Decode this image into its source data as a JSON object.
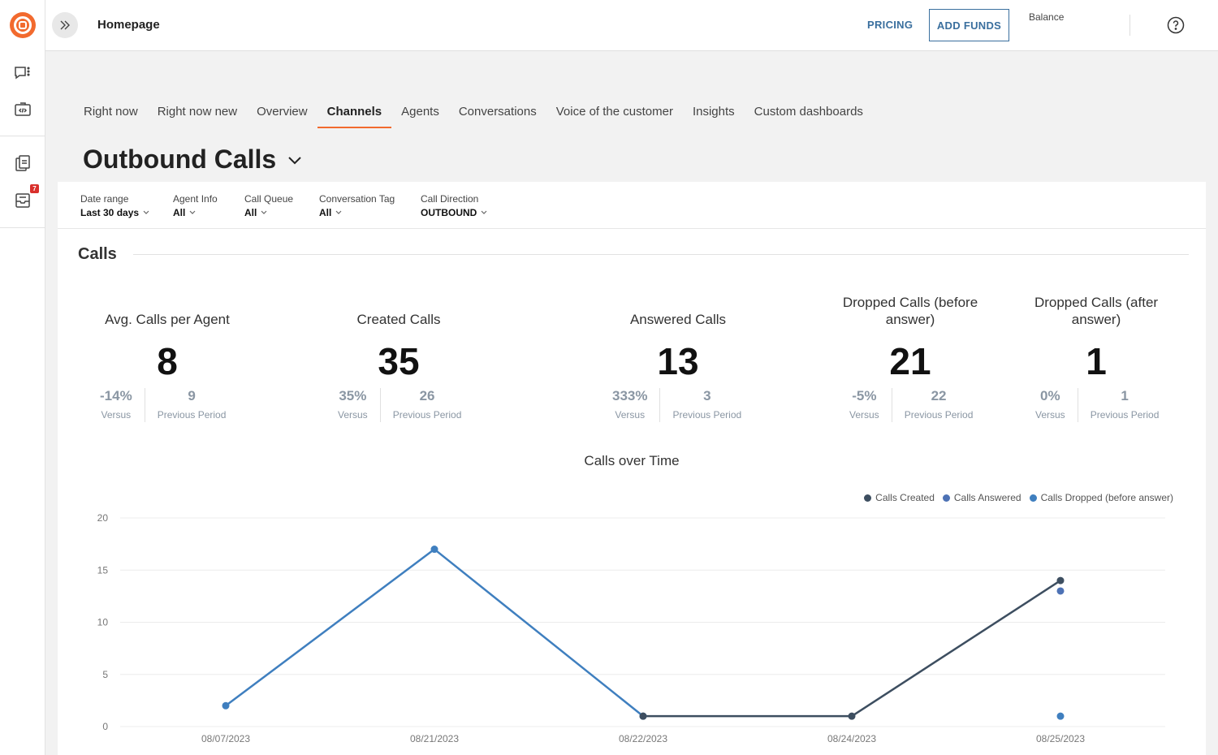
{
  "topbar": {
    "title": "Homepage",
    "pricing_label": "PRICING",
    "add_funds_label": "ADD FUNDS",
    "balance_label": "Balance"
  },
  "sidebar": {
    "icons": [
      "chat-list-icon",
      "code-box-icon",
      "copy-document-icon",
      "inbox-icon"
    ],
    "badge_count": "7"
  },
  "tabs": [
    "Right now",
    "Right now new",
    "Overview",
    "Channels",
    "Agents",
    "Conversations",
    "Voice of the customer",
    "Insights",
    "Custom dashboards"
  ],
  "active_tab": "Channels",
  "page_title": "Outbound Calls",
  "filters": [
    {
      "label": "Date range",
      "value": "Last 30 days"
    },
    {
      "label": "Agent Info",
      "value": "All"
    },
    {
      "label": "Call Queue",
      "value": "All"
    },
    {
      "label": "Conversation Tag",
      "value": "All"
    },
    {
      "label": "Call Direction",
      "value": "OUTBOUND"
    }
  ],
  "section_title": "Calls",
  "kpis": [
    {
      "title": "Avg. Calls per Agent",
      "value": "8",
      "versus": "-14%",
      "versus_label": "Versus",
      "previous": "9",
      "previous_label": "Previous Period"
    },
    {
      "title": "Created Calls",
      "value": "35",
      "versus": "35%",
      "versus_label": "Versus",
      "previous": "26",
      "previous_label": "Previous Period"
    },
    {
      "title": "Answered Calls",
      "value": "13",
      "versus": "333%",
      "versus_label": "Versus",
      "previous": "3",
      "previous_label": "Previous Period"
    },
    {
      "title": "Dropped Calls (before answer)",
      "value": "21",
      "versus": "-5%",
      "versus_label": "Versus",
      "previous": "22",
      "previous_label": "Previous Period"
    },
    {
      "title": "Dropped Calls (after answer)",
      "value": "1",
      "versus": "0%",
      "versus_label": "Versus",
      "previous": "1",
      "previous_label": "Previous Period"
    }
  ],
  "colors": {
    "accent": "#f26a2e",
    "link": "#3a6f9e",
    "series_created": "#3d4e60",
    "series_answered": "#4d72b5",
    "series_dropped": "#3f7fbf"
  },
  "chart_data": {
    "type": "line",
    "title": "Calls over Time",
    "categories": [
      "08/07/2023",
      "08/21/2023",
      "08/22/2023",
      "08/24/2023",
      "08/25/2023"
    ],
    "ylim": [
      0,
      20
    ],
    "yticks": [
      0,
      5,
      10,
      15,
      20
    ],
    "grid": true,
    "legend_position": "top-right",
    "series": [
      {
        "name": "Calls Created",
        "values": [
          null,
          null,
          1,
          1,
          14
        ]
      },
      {
        "name": "Calls Answered",
        "values": [
          null,
          null,
          null,
          null,
          13
        ]
      },
      {
        "name": "Calls Dropped (before answer)",
        "values": [
          2,
          17,
          1,
          null,
          1
        ]
      }
    ]
  }
}
